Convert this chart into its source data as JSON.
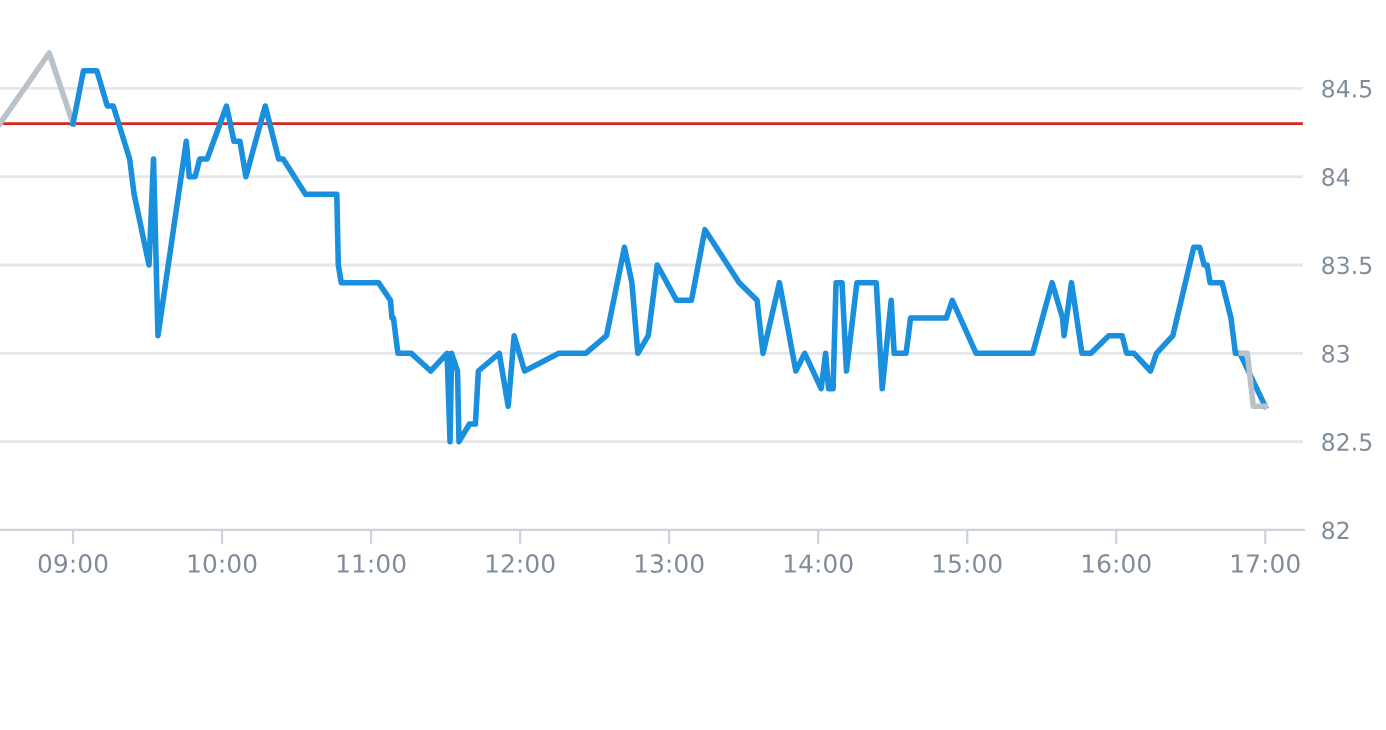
{
  "chart_data": {
    "type": "line",
    "series": [
      {
        "color": "#b8c2c8",
        "x": [
          8.51,
          8.84,
          9.0
        ],
        "values": [
          84.3,
          84.7,
          84.3
        ]
      },
      {
        "color": "#1a8fdd",
        "x": [
          9.0,
          9.07,
          9.16,
          9.23,
          9.27,
          9.38,
          9.41,
          9.51,
          9.54,
          9.57,
          9.76,
          9.78,
          9.82,
          9.85,
          9.9,
          10.03,
          10.08,
          10.12,
          10.16,
          10.29,
          10.38,
          10.41,
          10.56,
          10.77,
          10.78,
          10.8,
          11.05,
          11.13,
          11.14,
          11.15,
          11.18,
          11.27,
          11.4,
          11.51,
          11.53,
          11.54,
          11.58,
          11.59,
          11.66,
          11.7,
          11.72,
          11.86,
          11.92,
          11.96,
          12.03,
          12.26,
          12.44,
          12.58,
          12.7,
          12.75,
          12.79,
          12.86,
          12.92,
          13.05,
          13.15,
          13.24,
          13.47,
          13.59,
          13.63,
          13.74,
          13.85,
          13.91,
          14.02,
          14.05,
          14.07,
          14.1,
          14.12,
          14.16,
          14.19,
          14.26,
          14.39,
          14.43,
          14.49,
          14.51,
          14.59,
          14.62,
          14.86,
          14.9,
          15.06,
          15.44,
          15.57,
          15.64,
          15.65,
          15.7,
          15.77,
          15.83,
          15.95,
          16.04,
          16.07,
          16.12,
          16.23,
          16.27,
          16.38,
          16.52,
          16.56,
          16.59,
          16.61,
          16.63,
          16.71,
          16.77,
          16.8,
          16.83,
          17.0
        ],
        "values": [
          84.3,
          84.6,
          84.6,
          84.4,
          84.4,
          84.1,
          83.9,
          83.5,
          84.1,
          83.1,
          84.2,
          84.0,
          84.0,
          84.1,
          84.1,
          84.4,
          84.2,
          84.2,
          84.0,
          84.4,
          84.1,
          84.1,
          83.9,
          83.9,
          83.5,
          83.4,
          83.4,
          83.3,
          83.2,
          83.2,
          83.0,
          83.0,
          82.9,
          83.0,
          82.5,
          83.0,
          82.9,
          82.5,
          82.6,
          82.6,
          82.9,
          83.0,
          82.7,
          83.1,
          82.9,
          83.0,
          83.0,
          83.1,
          83.6,
          83.4,
          83.0,
          83.1,
          83.5,
          83.3,
          83.3,
          83.7,
          83.4,
          83.3,
          83.0,
          83.4,
          82.9,
          83.0,
          82.8,
          83.0,
          82.8,
          82.8,
          83.4,
          83.4,
          82.9,
          83.4,
          83.4,
          82.8,
          83.3,
          83.0,
          83.0,
          83.2,
          83.2,
          83.3,
          83.0,
          83.0,
          83.4,
          83.2,
          83.1,
          83.4,
          83.0,
          83.0,
          83.1,
          83.1,
          83.0,
          83.0,
          82.9,
          83.0,
          83.1,
          83.6,
          83.6,
          83.5,
          83.5,
          83.4,
          83.4,
          83.2,
          83.0,
          83.0,
          82.7
        ]
      },
      {
        "color": "#b8c2c8",
        "x": [
          16.84,
          16.88,
          16.92,
          17.0
        ],
        "values": [
          83.0,
          83.0,
          82.7,
          82.7
        ]
      }
    ],
    "ref_lines": [
      {
        "axis": "y",
        "value": 84.3,
        "color": "#d9261c"
      }
    ],
    "xlim": [
      8.51,
      17.26
    ],
    "xticks": [
      {
        "value": 9,
        "label": "09:00"
      },
      {
        "value": 10,
        "label": "10:00"
      },
      {
        "value": 11,
        "label": "11:00"
      },
      {
        "value": 12,
        "label": "12:00"
      },
      {
        "value": 13,
        "label": "13:00"
      },
      {
        "value": 14,
        "label": "14:00"
      },
      {
        "value": 15,
        "label": "15:00"
      },
      {
        "value": 16,
        "label": "16:00"
      },
      {
        "value": 17,
        "label": "17:00"
      }
    ],
    "ylim": [
      82,
      85
    ],
    "yticks": [
      82,
      82.5,
      83,
      83.5,
      84,
      84.5
    ],
    "grid": "y",
    "legend": false,
    "marker": "none",
    "line_style": "solid"
  }
}
